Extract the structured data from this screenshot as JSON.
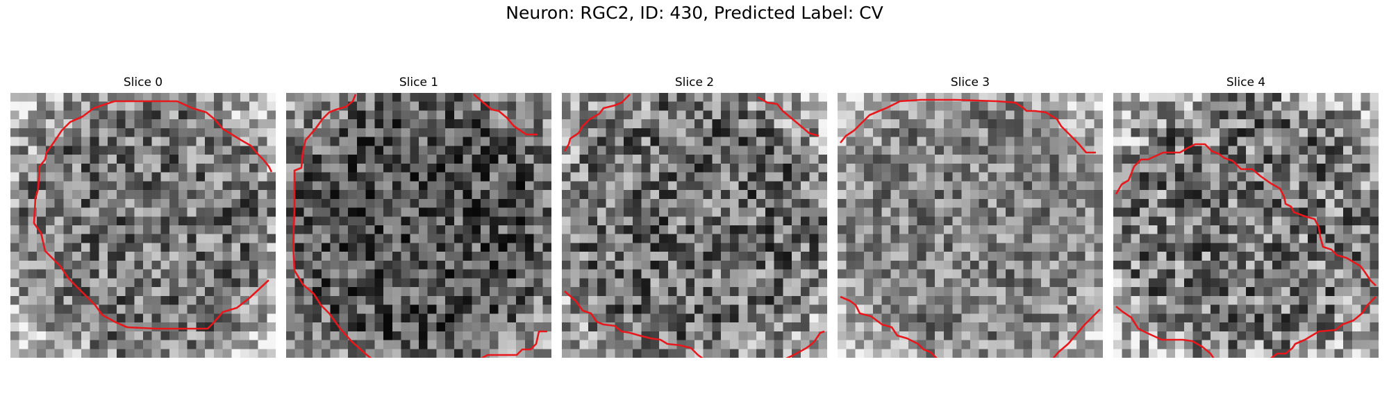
{
  "figure": {
    "title": "Neuron: RGC2, ID: 430, Predicted Label: CV",
    "contour_color": "#e8171c",
    "panels": [
      {
        "title": "Slice 0"
      },
      {
        "title": "Slice 1"
      },
      {
        "title": "Slice 2"
      },
      {
        "title": "Slice 3"
      },
      {
        "title": "Slice 4"
      }
    ]
  }
}
